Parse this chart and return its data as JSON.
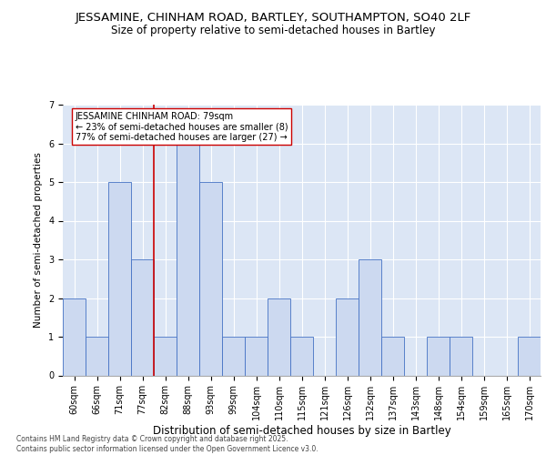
{
  "title_line1": "JESSAMINE, CHINHAM ROAD, BARTLEY, SOUTHAMPTON, SO40 2LF",
  "title_line2": "Size of property relative to semi-detached houses in Bartley",
  "xlabel": "Distribution of semi-detached houses by size in Bartley",
  "ylabel": "Number of semi-detached properties",
  "categories": [
    "60sqm",
    "66sqm",
    "71sqm",
    "77sqm",
    "82sqm",
    "88sqm",
    "93sqm",
    "99sqm",
    "104sqm",
    "110sqm",
    "115sqm",
    "121sqm",
    "126sqm",
    "132sqm",
    "137sqm",
    "143sqm",
    "148sqm",
    "154sqm",
    "159sqm",
    "165sqm",
    "170sqm"
  ],
  "values": [
    2,
    1,
    5,
    3,
    1,
    6,
    5,
    1,
    1,
    2,
    1,
    0,
    2,
    3,
    1,
    0,
    1,
    1,
    0,
    0,
    1
  ],
  "bar_color": "#ccd9f0",
  "bar_edge_color": "#4472c4",
  "highlight_index": 3,
  "highlight_line_color": "#cc0000",
  "annotation_box_color": "#ffffff",
  "annotation_box_edge": "#cc0000",
  "annotation_text": "JESSAMINE CHINHAM ROAD: 79sqm\n← 23% of semi-detached houses are smaller (8)\n77% of semi-detached houses are larger (27) →",
  "ylim": [
    0,
    7
  ],
  "yticks": [
    0,
    1,
    2,
    3,
    4,
    5,
    6,
    7
  ],
  "background_color": "#dce6f5",
  "footer_text": "Contains HM Land Registry data © Crown copyright and database right 2025.\nContains public sector information licensed under the Open Government Licence v3.0.",
  "title_fontsize": 9.5,
  "subtitle_fontsize": 8.5,
  "xlabel_fontsize": 8.5,
  "ylabel_fontsize": 7.5,
  "tick_fontsize": 7,
  "annotation_fontsize": 7,
  "footer_fontsize": 5.5
}
